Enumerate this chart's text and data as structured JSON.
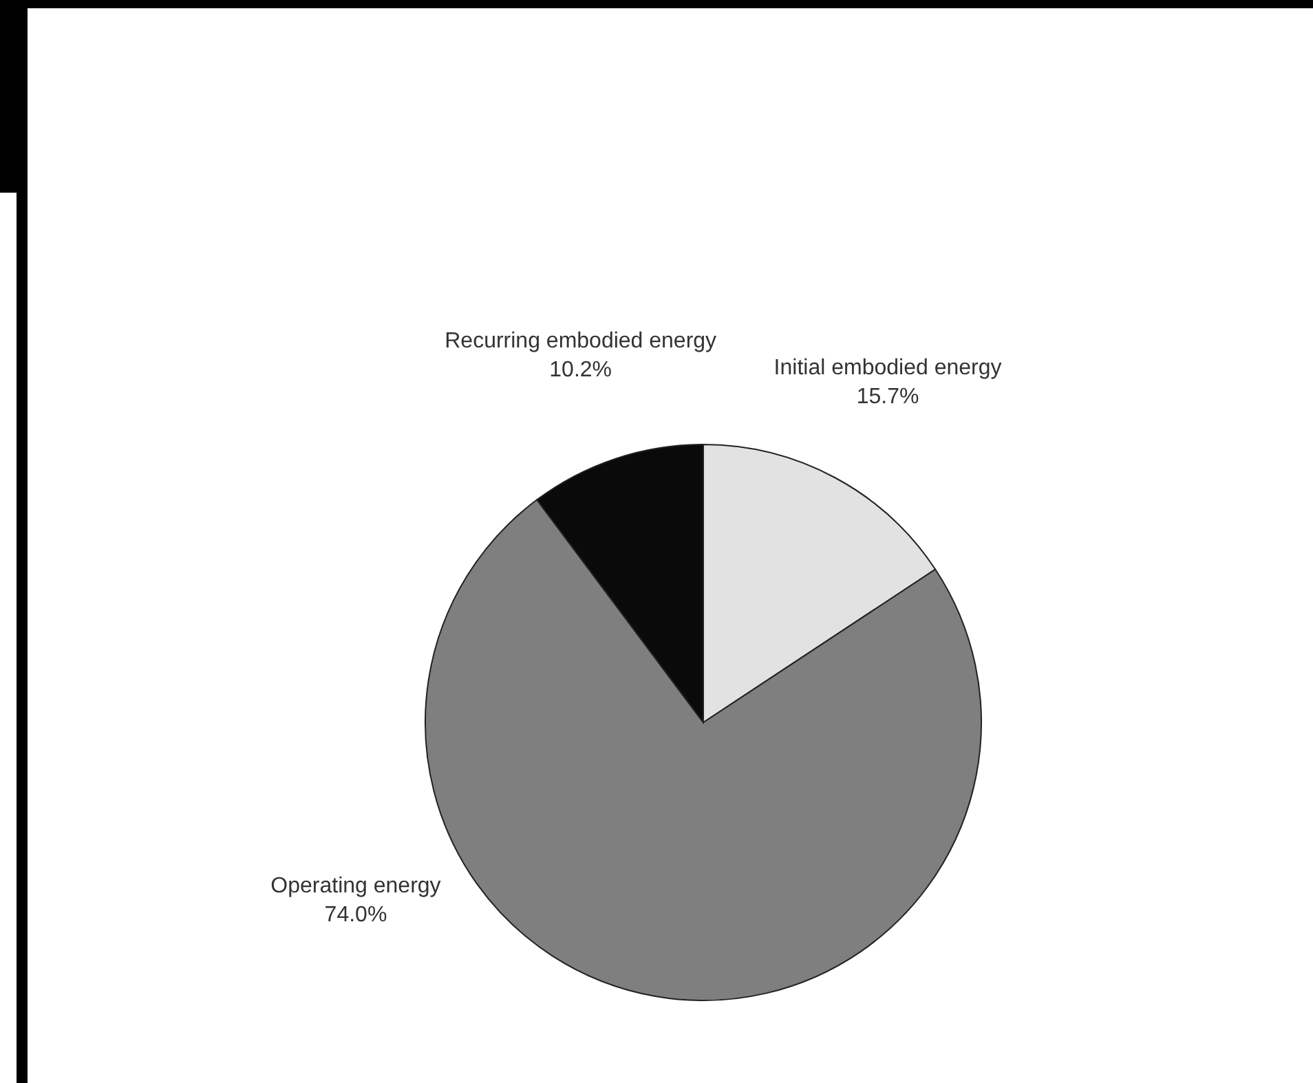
{
  "chart_data": {
    "type": "pie",
    "categories": [
      "Initial embodied energy",
      "Operating energy",
      "Recurring embodied energy"
    ],
    "values": [
      15.7,
      74.0,
      10.2
    ],
    "value_labels": [
      "15.7%",
      "74.0%",
      "10.2%"
    ],
    "colors": [
      "#e2e2e2",
      "#7f7f7f",
      "#0a0a0a"
    ]
  }
}
